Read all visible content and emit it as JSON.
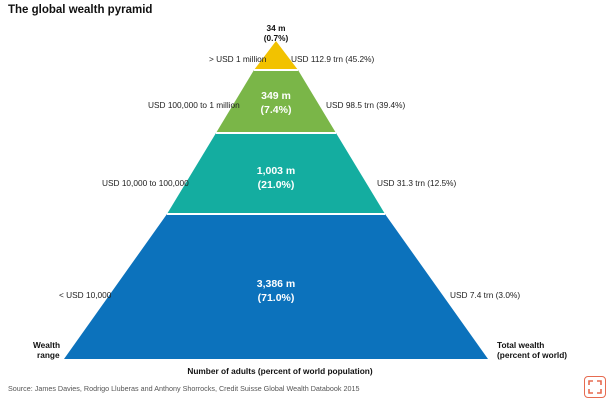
{
  "title": "The global wealth pyramid",
  "tiers": [
    {
      "name": "top",
      "adults": "34 m",
      "share": "(0.7%)",
      "range": "> USD 1 million",
      "wealth": "USD 112.9 trn (45.2%)",
      "color": "#f2c200"
    },
    {
      "name": "upper",
      "adults": "349 m",
      "share": "(7.4%)",
      "range": "USD 100,000 to 1 million",
      "wealth": "USD 98.5 trn (39.4%)",
      "color": "#7ab648"
    },
    {
      "name": "middle",
      "adults": "1,003 m",
      "share": "(21.0%)",
      "range": "USD 10,000 to 100,000",
      "wealth": "USD 31.3 trn (12.5%)",
      "color": "#14ada0"
    },
    {
      "name": "base",
      "adults": "3,386 m",
      "share": "(71.0%)",
      "range": "< USD 10,000",
      "wealth": "USD 7.4 trn (3.0%)",
      "color": "#0c72bc"
    }
  ],
  "labels": {
    "wealth_range_1": "Wealth",
    "wealth_range_2": "range",
    "total_wealth_1": "Total wealth",
    "total_wealth_2": "(percent of world)",
    "x_axis": "Number of adults (percent of world population)"
  },
  "source": "Source: James Davies, Rodrigo Lluberas and Anthony Shorrocks, Credit Suisse Global Wealth Databook 2015",
  "corner_icon": "expand-icon"
}
